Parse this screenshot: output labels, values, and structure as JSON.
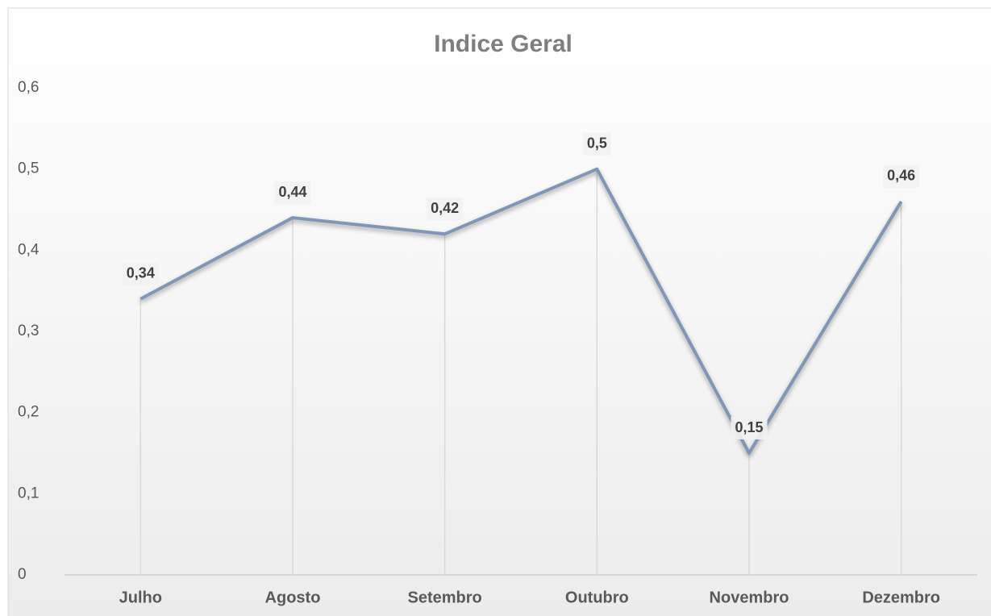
{
  "chart_data": {
    "type": "line",
    "title": "Indice Geral",
    "categories": [
      "Julho",
      "Agosto",
      "Setembro",
      "Outubro",
      "Novembro",
      "Dezembro"
    ],
    "values": [
      0.34,
      0.44,
      0.42,
      0.5,
      0.15,
      0.46
    ],
    "value_labels": [
      "0,34",
      "0,44",
      "0,42",
      "0,5",
      "0,15",
      "0,46"
    ],
    "color": "#8096b6",
    "ylim": [
      0,
      0.6
    ],
    "yticks": [
      0,
      {
        "value": 0.1,
        "label": "0,1"
      },
      {
        "value": 0.2,
        "label": "0,2"
      },
      {
        "value": 0.3,
        "label": "0,3"
      },
      {
        "value": 0.4,
        "label": "0,4"
      },
      {
        "value": 0.5,
        "label": "0,5"
      },
      {
        "value": 0.6,
        "label": "0,6"
      }
    ]
  }
}
